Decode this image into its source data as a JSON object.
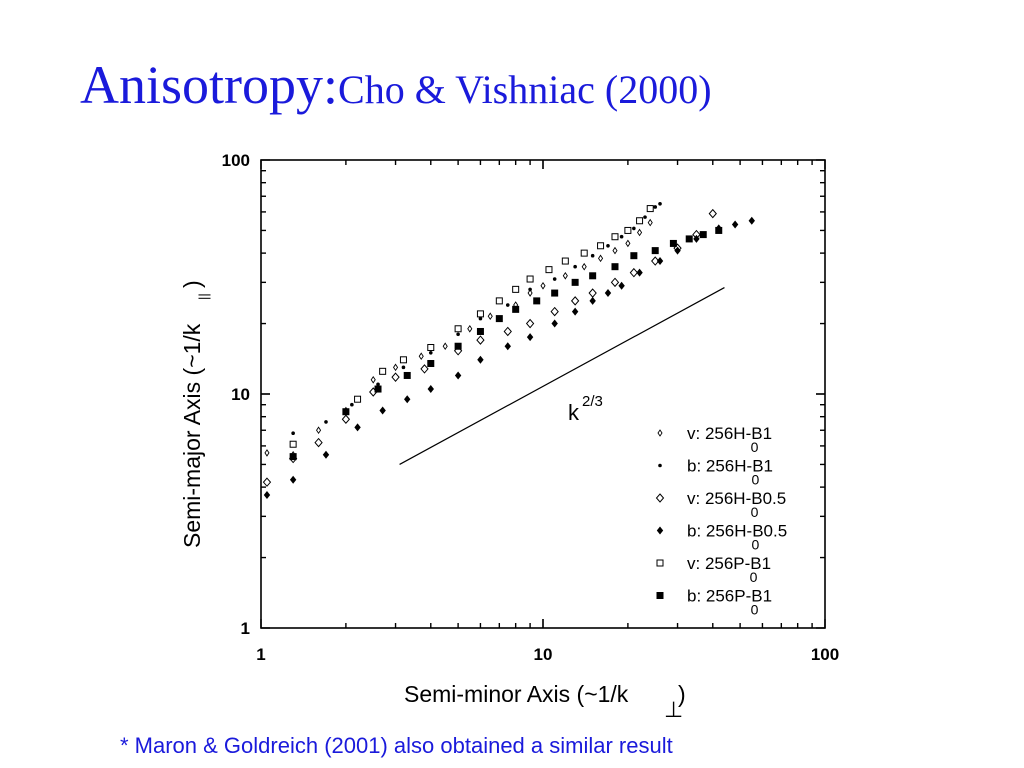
{
  "title": {
    "main": "Anisotropy:",
    "sub": "Cho & Vishniac (2000)"
  },
  "footnote": "* Maron & Goldreich (2001) also obtained a similar result",
  "colors": {
    "title": "#1a1adb",
    "footnote": "#1a1adb",
    "ink": "#000000"
  },
  "chart_data": {
    "type": "scatter",
    "xscale": "log",
    "yscale": "log",
    "xlim": [
      1,
      100
    ],
    "ylim": [
      1,
      100
    ],
    "xticks": [
      "1",
      "10",
      "100"
    ],
    "yticks": [
      "1",
      "10",
      "100"
    ],
    "xlabel": {
      "text": "Semi-minor Axis  (~1/k",
      "sub": "⊥",
      "close": ")"
    },
    "ylabel": {
      "text": "Semi-major Axis  (~1/k",
      "sub": "||",
      "close": ")"
    },
    "grid": false,
    "legend_position": "right",
    "series": [
      {
        "name": "v: 256H-B",
        "subscript": "0",
        "suffix": "1",
        "marker": "open-small-diamond",
        "points": [
          [
            1.05,
            5.6
          ],
          [
            1.3,
            5.5
          ],
          [
            1.6,
            7
          ],
          [
            2.0,
            8.5
          ],
          [
            2.5,
            11.5
          ],
          [
            3.0,
            13
          ],
          [
            3.7,
            14.5
          ],
          [
            4.5,
            16
          ],
          [
            5.5,
            19
          ],
          [
            6.5,
            21.5
          ],
          [
            8,
            24
          ],
          [
            9,
            27
          ],
          [
            10,
            29
          ],
          [
            12,
            32
          ],
          [
            14,
            35
          ],
          [
            16,
            38
          ],
          [
            18,
            41
          ],
          [
            20,
            44
          ],
          [
            22,
            49
          ],
          [
            24,
            54
          ]
        ]
      },
      {
        "name": "b: 256H-B",
        "subscript": "0",
        "suffix": "1",
        "marker": "filled-small-dot",
        "points": [
          [
            1.3,
            6.8
          ],
          [
            1.7,
            7.6
          ],
          [
            2.1,
            9
          ],
          [
            2.6,
            11
          ],
          [
            3.2,
            13
          ],
          [
            4,
            15
          ],
          [
            5,
            18
          ],
          [
            6,
            21
          ],
          [
            7.5,
            24
          ],
          [
            9,
            28
          ],
          [
            11,
            31
          ],
          [
            13,
            35
          ],
          [
            15,
            39
          ],
          [
            17,
            43
          ],
          [
            19,
            47
          ],
          [
            21,
            51
          ],
          [
            23,
            57
          ],
          [
            25,
            63
          ],
          [
            26,
            65
          ]
        ]
      },
      {
        "name": "v: 256H-B",
        "subscript": "0",
        "suffix": "0.5",
        "marker": "open-diamond",
        "points": [
          [
            1.05,
            4.2
          ],
          [
            1.3,
            5.3
          ],
          [
            1.6,
            6.2
          ],
          [
            2.0,
            7.8
          ],
          [
            2.5,
            10.2
          ],
          [
            3.0,
            11.8
          ],
          [
            3.8,
            12.8
          ],
          [
            5.0,
            15.3
          ],
          [
            6.0,
            17
          ],
          [
            7.5,
            18.5
          ],
          [
            9,
            20
          ],
          [
            11,
            22.5
          ],
          [
            13,
            25
          ],
          [
            15,
            27
          ],
          [
            18,
            30
          ],
          [
            21,
            33
          ],
          [
            25,
            37
          ],
          [
            30,
            42
          ],
          [
            35,
            48
          ],
          [
            40,
            59
          ]
        ]
      },
      {
        "name": "b: 256H-B",
        "subscript": "0",
        "suffix": "0.5",
        "marker": "filled-diamond",
        "points": [
          [
            1.05,
            3.7
          ],
          [
            1.3,
            4.3
          ],
          [
            1.7,
            5.5
          ],
          [
            2.2,
            7.2
          ],
          [
            2.7,
            8.5
          ],
          [
            3.3,
            9.5
          ],
          [
            4,
            10.5
          ],
          [
            5,
            12
          ],
          [
            6,
            14
          ],
          [
            7.5,
            16
          ],
          [
            9,
            17.5
          ],
          [
            11,
            20
          ],
          [
            13,
            22.5
          ],
          [
            15,
            25
          ],
          [
            17,
            27
          ],
          [
            19,
            29
          ],
          [
            22,
            33
          ],
          [
            26,
            37
          ],
          [
            30,
            41
          ],
          [
            35,
            46
          ],
          [
            42,
            51
          ],
          [
            48,
            53
          ],
          [
            55,
            55
          ]
        ]
      },
      {
        "name": "v: 256P-B",
        "subscript": "0",
        "suffix": "1",
        "marker": "open-square",
        "points": [
          [
            1.3,
            6.1
          ],
          [
            2.2,
            9.5
          ],
          [
            2.7,
            12.5
          ],
          [
            3.2,
            14
          ],
          [
            4,
            15.8
          ],
          [
            5,
            19
          ],
          [
            6,
            22
          ],
          [
            7,
            25
          ],
          [
            8,
            28
          ],
          [
            9,
            31
          ],
          [
            10.5,
            34
          ],
          [
            12,
            37
          ],
          [
            14,
            40
          ],
          [
            16,
            43
          ],
          [
            18,
            47
          ],
          [
            20,
            50
          ],
          [
            22,
            55
          ],
          [
            24,
            62
          ]
        ]
      },
      {
        "name": "b: 256P-B",
        "subscript": "0",
        "suffix": "1",
        "marker": "filled-square",
        "points": [
          [
            1.3,
            5.4
          ],
          [
            2,
            8.4
          ],
          [
            2.6,
            10.5
          ],
          [
            3.3,
            12
          ],
          [
            4,
            13.5
          ],
          [
            5,
            16
          ],
          [
            6,
            18.5
          ],
          [
            7,
            21
          ],
          [
            8,
            23
          ],
          [
            9.5,
            25
          ],
          [
            11,
            27
          ],
          [
            13,
            30
          ],
          [
            15,
            32
          ],
          [
            18,
            35
          ],
          [
            21,
            39
          ],
          [
            25,
            41
          ],
          [
            29,
            44
          ],
          [
            33,
            46
          ],
          [
            37,
            48
          ],
          [
            42,
            50
          ]
        ]
      }
    ],
    "reference_line": {
      "label": "k",
      "label_sup": "2/3",
      "from": [
        3.1,
        5
      ],
      "to": [
        44,
        28.5
      ]
    }
  }
}
